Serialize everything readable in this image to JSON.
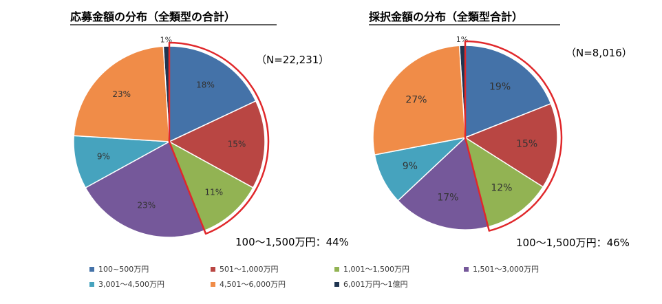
{
  "chart_data": [
    {
      "type": "pie",
      "title": "応募金額の分布（全類型の合計）",
      "n_label": "（N=22,231）",
      "categories": [
        "100~500万円",
        "501～1,000万円",
        "1,001～1,500万円",
        "1,501～3,000万円",
        "3,001～4,500万円",
        "4,501～6,000万円",
        "6,001万円～1億円"
      ],
      "values": [
        18,
        15,
        11,
        23,
        9,
        23,
        1
      ],
      "labels": [
        "18%",
        "15%",
        "11%",
        "23%",
        "9%",
        "23%",
        "1%"
      ],
      "highlight_note": "100～1,500万円：44%"
    },
    {
      "type": "pie",
      "title": "採択金額の分布（全類型合計）",
      "n_label": "（N=8,016）",
      "categories": [
        "100~500万円",
        "501～1,000万円",
        "1,001～1,500万円",
        "1,501～3,000万円",
        "3,001～4,500万円",
        "4,501～6,000万円",
        "6,001万円～1億円"
      ],
      "values": [
        19,
        15,
        12,
        17,
        9,
        27,
        1
      ],
      "labels": [
        "19%",
        "15%",
        "12%",
        "17%",
        "9%",
        "27%",
        "1%"
      ],
      "highlight_note": "100～1,500万円：46%"
    }
  ],
  "legend": [
    {
      "label": "100~500万円",
      "color": "#4472A8"
    },
    {
      "label": "501～1,000万円",
      "color": "#B94643"
    },
    {
      "label": "1,001～1,500万円",
      "color": "#92B353"
    },
    {
      "label": "1,501～3,000万円",
      "color": "#75589A"
    },
    {
      "label": "3,001～4,500万円",
      "color": "#46A3BE"
    },
    {
      "label": "4,501～6,000万円",
      "color": "#F08C48"
    },
    {
      "label": "6,001万円～1億円",
      "color": "#1F3550"
    }
  ],
  "colors": [
    "#4472A8",
    "#B94643",
    "#92B353",
    "#75589A",
    "#46A3BE",
    "#F08C48",
    "#1F3550"
  ],
  "highlight_color": "#E0282B"
}
